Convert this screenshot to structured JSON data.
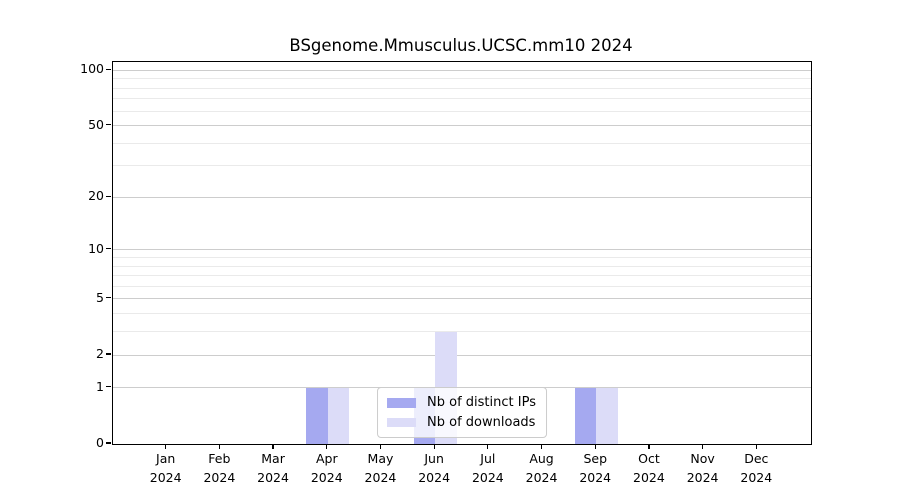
{
  "chart_data": {
    "type": "bar",
    "title": "BSgenome.Mmusculus.UCSC.mm10 2024",
    "year": "2024",
    "categories": [
      "Jan",
      "Feb",
      "Mar",
      "Apr",
      "May",
      "Jun",
      "Jul",
      "Aug",
      "Sep",
      "Oct",
      "Nov",
      "Dec"
    ],
    "series": [
      {
        "name": "Nb of distinct IPs",
        "color": "#a5a9f0",
        "values": [
          0,
          0,
          0,
          1,
          0,
          1,
          0,
          0,
          1,
          0,
          0,
          0
        ]
      },
      {
        "name": "Nb of downloads",
        "color": "#dcdcf8",
        "values": [
          0,
          0,
          0,
          1,
          0,
          3,
          0,
          0,
          1,
          0,
          0,
          0
        ]
      }
    ],
    "xlabel": "",
    "ylabel": "",
    "yscale": "log1p",
    "ylim": [
      0,
      112
    ],
    "y_major_ticks": [
      0,
      1,
      2,
      5,
      10,
      20,
      50,
      100
    ],
    "y_minor_ticks": [
      3,
      4,
      6,
      7,
      8,
      9,
      30,
      40,
      60,
      70,
      80,
      90
    ],
    "grid": true,
    "legend_position": "lower center",
    "colors": {
      "major_grid": "#cdcdcd",
      "minor_grid": "#eaeaea",
      "axis": "#000000",
      "text": "#000000",
      "background": "#ffffff"
    }
  }
}
